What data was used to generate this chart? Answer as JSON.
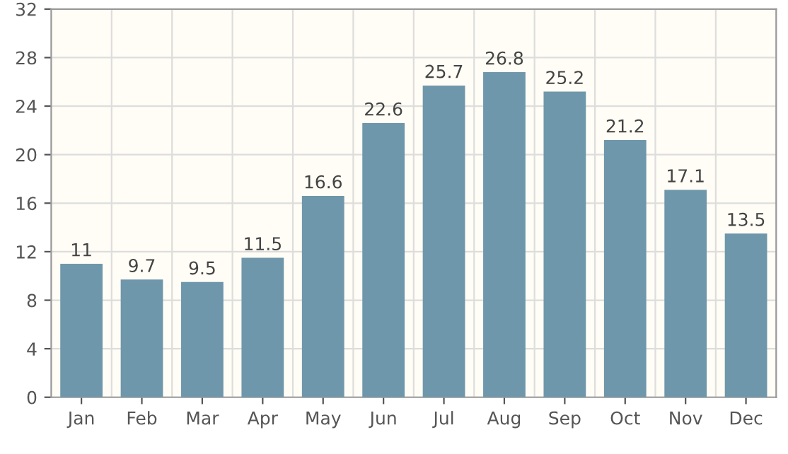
{
  "chart_data": {
    "type": "bar",
    "categories": [
      "Jan",
      "Feb",
      "Mar",
      "Apr",
      "May",
      "Jun",
      "Jul",
      "Aug",
      "Sep",
      "Oct",
      "Nov",
      "Dec"
    ],
    "values": [
      11,
      9.7,
      9.5,
      11.5,
      16.6,
      22.6,
      25.7,
      26.8,
      25.2,
      21.2,
      17.1,
      13.5
    ],
    "color": "#6f97ab",
    "ylim": [
      0,
      32
    ],
    "yticks": [
      0,
      4,
      8,
      12,
      16,
      20,
      24,
      28,
      32
    ],
    "grid": true,
    "data_labels": true
  }
}
